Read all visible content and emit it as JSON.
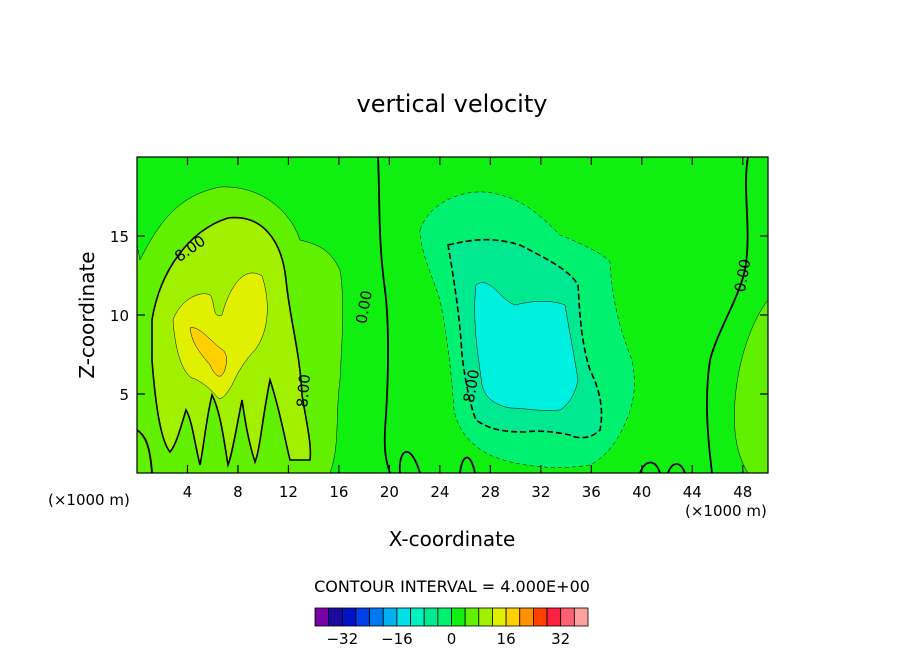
{
  "chart_data": {
    "type": "heatmap",
    "title": "vertical velocity",
    "xlabel": "X-coordinate",
    "ylabel": "Z-coordinate",
    "x_unit": "(×1000 m)",
    "z_unit": "(×1000 m)",
    "xlim": [
      0,
      50
    ],
    "ylim": [
      0,
      20
    ],
    "x_ticks": [
      4,
      8,
      12,
      16,
      20,
      24,
      28,
      32,
      36,
      40,
      44,
      48
    ],
    "y_ticks": [
      5,
      10,
      15
    ],
    "contour_interval_label": "CONTOUR INTERVAL = 4.000E+00",
    "contour_labels": [
      {
        "text": "8.00",
        "x": 4.2,
        "z": 14.2,
        "angle": -35
      },
      {
        "text": "0.00",
        "x": 18.0,
        "z": 10.5,
        "angle": -80
      },
      {
        "text": "8.00",
        "x": 13.2,
        "z": 5.2,
        "angle": -85
      },
      {
        "text": "0.00",
        "x": 48.0,
        "z": 12.5,
        "angle": -80
      },
      {
        "text": "8.00",
        "x": 26.5,
        "z": 5.5,
        "angle": -80
      }
    ],
    "features": [
      {
        "kind": "updraft",
        "center_x": 6.5,
        "center_z": 8.0,
        "peak": 14
      },
      {
        "kind": "downdraft",
        "center_x": 30.5,
        "center_z": 7.0,
        "peak": -12
      },
      {
        "kind": "updraft",
        "center_x": 49.0,
        "center_z": 4.0,
        "peak": 4
      }
    ],
    "colorbar": {
      "levels": [
        -36,
        -32,
        -28,
        -24,
        -20,
        -16,
        -12,
        -8,
        -4,
        0,
        4,
        8,
        12,
        16,
        20,
        24,
        28,
        32,
        36
      ],
      "tick_labels": [
        "−32",
        "−16",
        "0",
        "16",
        "32"
      ],
      "tick_values": [
        -32,
        -16,
        0,
        16,
        32
      ],
      "colors": [
        "#7a00a8",
        "#1a0aa0",
        "#0012c8",
        "#0040e8",
        "#0078f0",
        "#00b0f0",
        "#00e0e8",
        "#00f0c0",
        "#00e890",
        "#00f070",
        "#10f010",
        "#60f000",
        "#a0f000",
        "#e0f000",
        "#ffd000",
        "#ff9000",
        "#ff4000",
        "#ff2040",
        "#ff6070",
        "#ffa0a0"
      ]
    }
  }
}
